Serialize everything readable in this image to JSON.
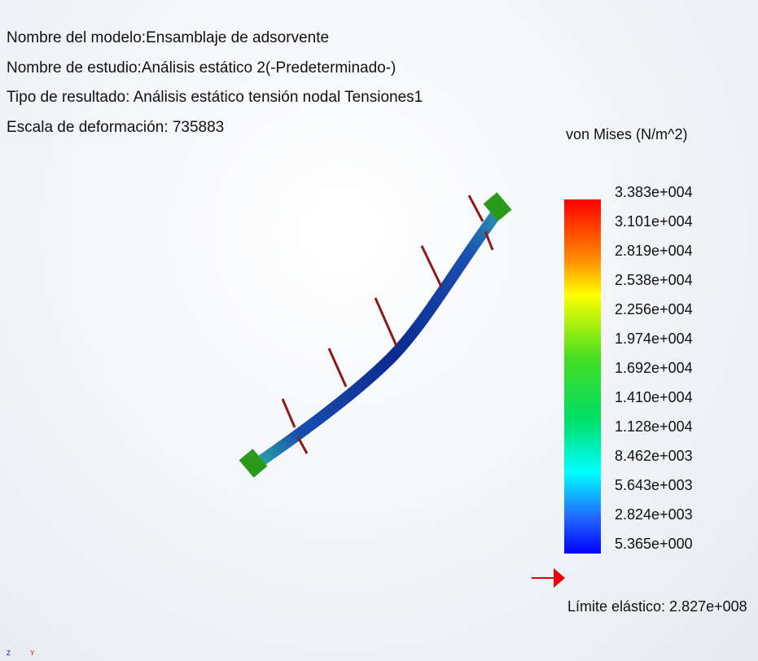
{
  "info": {
    "lines": [
      "Nombre del modelo:Ensamblaje de adsorvente",
      "Nombre de estudio:Análisis estático 2(-Predeterminado-)",
      "Tipo de resultado: Análisis estático tensión nodal Tensiones1",
      "Escala de deformación: 735883"
    ]
  },
  "legend": {
    "title": "von Mises (N/m^2)",
    "labels": [
      "3.383e+004",
      "3.101e+004",
      "2.819e+004",
      "2.538e+004",
      "2.256e+004",
      "1.974e+004",
      "1.692e+004",
      "1.410e+004",
      "1.128e+004",
      "8.462e+003",
      "5.643e+003",
      "2.824e+003",
      "5.365e+000"
    ],
    "yield": "Límite elástico: 2.827e+008"
  },
  "triad": {
    "labels": [
      "Z",
      "Y"
    ]
  }
}
